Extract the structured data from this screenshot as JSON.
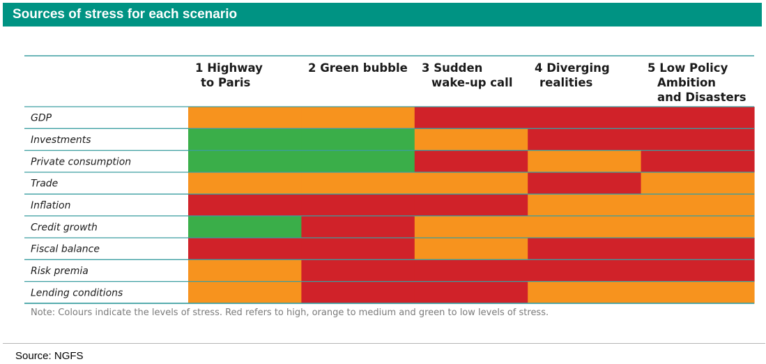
{
  "title": "Sources of stress for each scenario",
  "note": "Note: Colours indicate the levels of stress. Red refers to high, orange to medium and green to low levels of stress.",
  "source": "Source: NGFS",
  "colors": {
    "high": "#d02229",
    "medium": "#f7931e",
    "low": "#3aae49",
    "accent": "#009383",
    "rule": "#3a9ea0"
  },
  "chart_data": {
    "type": "heatmap",
    "columns": [
      {
        "lines": [
          "1 Highway",
          "to Paris"
        ]
      },
      {
        "lines": [
          "2 Green bubble"
        ]
      },
      {
        "lines": [
          "3 Sudden",
          "wake-up call"
        ]
      },
      {
        "lines": [
          "4 Diverging",
          "realities"
        ]
      },
      {
        "lines": [
          "5 Low Policy",
          "Ambition",
          "and Disasters"
        ]
      }
    ],
    "legend": {
      "high": "red",
      "medium": "orange",
      "low": "green"
    },
    "rows": [
      {
        "label": "GDP",
        "levels": [
          "medium",
          "medium",
          "high",
          "high",
          "high"
        ]
      },
      {
        "label": "Investments",
        "levels": [
          "low",
          "low",
          "medium",
          "high",
          "high"
        ]
      },
      {
        "label": "Private consumption",
        "levels": [
          "low",
          "low",
          "high",
          "medium",
          "high"
        ]
      },
      {
        "label": "Trade",
        "levels": [
          "medium",
          "medium",
          "medium",
          "high",
          "medium"
        ]
      },
      {
        "label": "Inflation",
        "levels": [
          "high",
          "high",
          "high",
          "medium",
          "medium"
        ]
      },
      {
        "label": "Credit growth",
        "levels": [
          "low",
          "high",
          "medium",
          "medium",
          "medium"
        ]
      },
      {
        "label": "Fiscal balance",
        "levels": [
          "high",
          "high",
          "medium",
          "high",
          "high"
        ]
      },
      {
        "label": "Risk premia",
        "levels": [
          "medium",
          "high",
          "high",
          "high",
          "high"
        ]
      },
      {
        "label": "Lending conditions",
        "levels": [
          "medium",
          "high",
          "high",
          "medium",
          "medium"
        ]
      }
    ]
  }
}
